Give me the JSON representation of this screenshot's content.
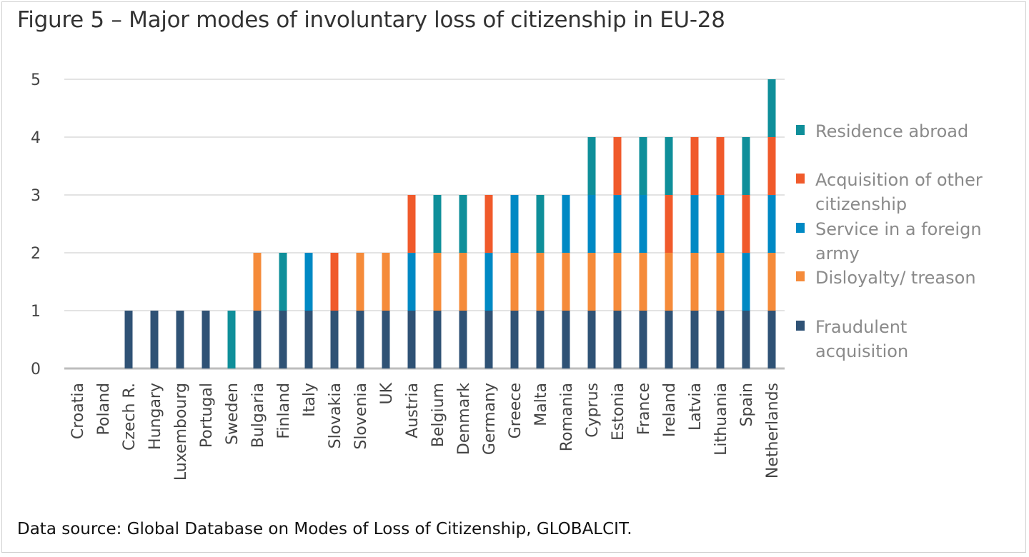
{
  "chart_data": {
    "type": "bar",
    "stacked": true,
    "title": "Figure 5 – Major modes of involuntary loss of citizenship in EU-28",
    "source": "Data source: Global Database on Modes of Loss of Citizenship, GLOBALCIT.",
    "xlabel": "",
    "ylabel": "",
    "ylim": [
      0,
      5
    ],
    "yticks": [
      "0",
      "1",
      "2",
      "3",
      "4",
      "5"
    ],
    "grid": true,
    "legend_position": "right",
    "categories": [
      "Croatia",
      "Poland",
      "Czech R.",
      "Hungary",
      "Luxembourg",
      "Portugal",
      "Sweden",
      "Bulgaria",
      "Finland",
      "Italy",
      "Slovakia",
      "Slovenia",
      "UK",
      "Austria",
      "Belgium",
      "Denmark",
      "Germany",
      "Greece",
      "Malta",
      "Romania",
      "Cyprus",
      "Estonia",
      "France",
      "Ireland",
      "Latvia",
      "Lithuania",
      "Spain",
      "Netherlands"
    ],
    "series": [
      {
        "name": "Fraudulent acquisition",
        "color": "#2f5275",
        "values": [
          0,
          0,
          1,
          1,
          1,
          1,
          0,
          1,
          1,
          1,
          1,
          1,
          1,
          1,
          1,
          1,
          1,
          1,
          1,
          1,
          1,
          1,
          1,
          1,
          1,
          1,
          1,
          1
        ]
      },
      {
        "name": "Disloyalty/ treason",
        "color": "#f58b3a",
        "values": [
          0,
          0,
          0,
          0,
          0,
          0,
          0,
          1,
          0,
          0,
          0,
          1,
          1,
          0,
          1,
          1,
          0,
          1,
          1,
          1,
          1,
          1,
          1,
          1,
          1,
          1,
          0,
          1
        ]
      },
      {
        "name": "Service in a foreign army",
        "color": "#0089c4",
        "values": [
          0,
          0,
          0,
          0,
          0,
          0,
          0,
          0,
          0,
          1,
          0,
          0,
          0,
          1,
          0,
          0,
          1,
          1,
          0,
          1,
          1,
          1,
          1,
          0,
          1,
          1,
          1,
          1
        ]
      },
      {
        "name": "Acquisition of other citizenship",
        "color": "#f05a2b",
        "values": [
          0,
          0,
          0,
          0,
          0,
          0,
          0,
          0,
          0,
          0,
          1,
          0,
          0,
          1,
          0,
          0,
          1,
          0,
          0,
          0,
          0,
          1,
          0,
          1,
          1,
          1,
          1,
          1
        ]
      },
      {
        "name": "Residence abroad",
        "color": "#0f8f9a",
        "values": [
          0,
          0,
          0,
          0,
          0,
          0,
          1,
          0,
          1,
          0,
          0,
          0,
          0,
          0,
          1,
          1,
          0,
          0,
          1,
          0,
          1,
          0,
          1,
          1,
          0,
          0,
          1,
          1
        ]
      }
    ],
    "legend_order": [
      "Residence abroad",
      "Acquisition of other citizenship",
      "Service in a foreign army",
      "Disloyalty/ treason",
      "Fraudulent acquisition"
    ],
    "legend_lines": [
      [
        "Residence abroad"
      ],
      [
        "Acquisition of other",
        "citizenship"
      ],
      [
        "Service in a foreign",
        "army"
      ],
      [
        "Disloyalty/ treason"
      ],
      [
        "Fraudulent",
        "acquisition"
      ]
    ]
  }
}
